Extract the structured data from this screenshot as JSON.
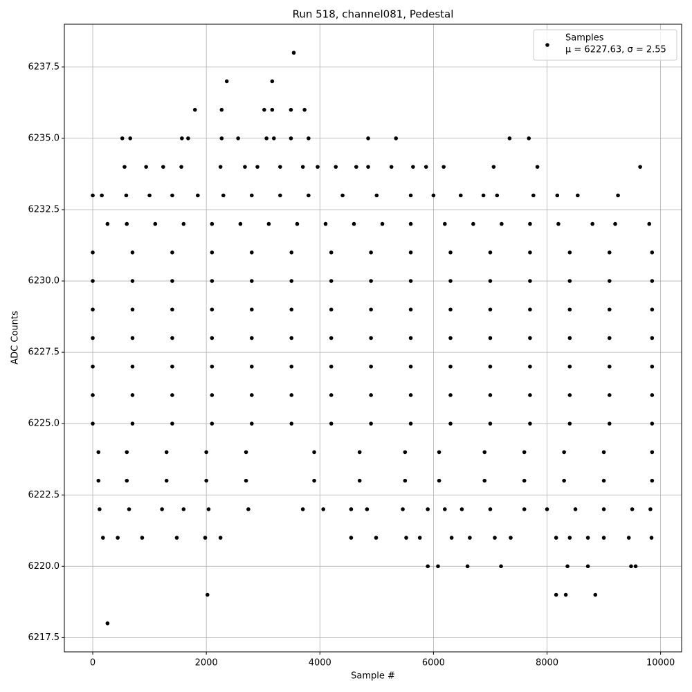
{
  "chart_data": {
    "type": "scatter",
    "title": "Run 518, channel081, Pedestal",
    "x_label": "Sample #",
    "y_label": "ADC Counts",
    "xlim": [
      -500,
      10370
    ],
    "ylim": [
      6217.0,
      6239.0
    ],
    "xticks": [
      0,
      2000,
      4000,
      6000,
      8000,
      10000
    ],
    "yticks": [
      6217.5,
      {
        "value": 6220.0,
        "label": "6220.0"
      },
      6222.5,
      {
        "value": 6225.0,
        "label": "6225.0"
      },
      6227.5,
      {
        "value": 6230.0,
        "label": "6230.0"
      },
      6232.5,
      {
        "value": 6235.0,
        "label": "6235.0"
      },
      6237.5
    ],
    "grid": true,
    "legend": "upper right",
    "legend_text": "μ = 6227.63, σ = 2.55",
    "series": [
      {
        "name": "Samples",
        "color": "#000000",
        "x": [
          3540,
          2360,
          3160,
          1800,
          2270,
          3020,
          3160,
          3490,
          3730,
          520,
          660,
          1570,
          1680,
          2270,
          2560,
          3060,
          3190,
          3490,
          3800,
          4850,
          5340,
          7340,
          7680,
          560,
          940,
          1240,
          1560,
          2250,
          2680,
          2900,
          3300,
          3700,
          3960,
          4280,
          4640,
          4850,
          5260,
          5640,
          5870,
          6180,
          7060,
          7830,
          9640,
          0,
          160,
          590,
          1000,
          1400,
          1850,
          2300,
          2800,
          3300,
          3800,
          4400,
          5000,
          5600,
          6000,
          6480,
          6880,
          7120,
          7760,
          8180,
          8540,
          9250,
          260,
          600,
          1100,
          1600,
          2100,
          2600,
          3100,
          3600,
          4100,
          4600,
          5100,
          5600,
          6200,
          6700,
          7200,
          7700,
          8200,
          8800,
          9200,
          9800,
          0,
          700,
          1400,
          2100,
          2800,
          3500,
          4200,
          4900,
          5600,
          6300,
          7000,
          7700,
          8400,
          9100,
          9850,
          0,
          700,
          1400,
          2100,
          2800,
          3500,
          4200,
          4900,
          5600,
          6300,
          7000,
          7700,
          8400,
          9100,
          9850,
          0,
          700,
          1400,
          2100,
          2800,
          3500,
          4200,
          4900,
          5600,
          6300,
          7000,
          7700,
          8400,
          9100,
          9850,
          0,
          700,
          1400,
          2100,
          2800,
          3500,
          4200,
          4900,
          5600,
          6300,
          7000,
          7700,
          8400,
          9100,
          9850,
          0,
          700,
          1400,
          2100,
          2800,
          3500,
          4200,
          4900,
          5600,
          6300,
          7000,
          7700,
          8400,
          9100,
          9850,
          0,
          700,
          1400,
          2100,
          2800,
          3500,
          4200,
          4900,
          5600,
          6300,
          7000,
          7700,
          8400,
          9100,
          9850,
          0,
          700,
          1400,
          2100,
          2800,
          3500,
          4200,
          4900,
          5600,
          6300,
          7000,
          7700,
          8400,
          9100,
          9850,
          100,
          600,
          1300,
          2000,
          2700,
          3900,
          4700,
          5500,
          6100,
          6900,
          7600,
          8300,
          9000,
          9850,
          100,
          600,
          1300,
          2000,
          2700,
          3900,
          4700,
          5500,
          6100,
          6900,
          7600,
          8300,
          9000,
          9850,
          120,
          640,
          1220,
          1600,
          2040,
          2740,
          3700,
          4060,
          4550,
          4830,
          5460,
          5900,
          6200,
          6500,
          7000,
          7600,
          8000,
          8500,
          9000,
          9500,
          9820,
          180,
          440,
          870,
          1480,
          1980,
          2250,
          4550,
          4990,
          5520,
          5760,
          6320,
          6640,
          7080,
          7360,
          8160,
          8400,
          8720,
          9000,
          9440,
          9840,
          5900,
          6080,
          6600,
          7190,
          8360,
          8720,
          9480,
          9560,
          2020,
          8160,
          8330,
          8850,
          260
        ],
        "values": [
          6238,
          6237,
          6237,
          6236,
          6236,
          6236,
          6236,
          6236,
          6236,
          6235,
          6235,
          6235,
          6235,
          6235,
          6235,
          6235,
          6235,
          6235,
          6235,
          6235,
          6235,
          6235,
          6235,
          6234,
          6234,
          6234,
          6234,
          6234,
          6234,
          6234,
          6234,
          6234,
          6234,
          6234,
          6234,
          6234,
          6234,
          6234,
          6234,
          6234,
          6234,
          6234,
          6234,
          6233,
          6233,
          6233,
          6233,
          6233,
          6233,
          6233,
          6233,
          6233,
          6233,
          6233,
          6233,
          6233,
          6233,
          6233,
          6233,
          6233,
          6233,
          6233,
          6233,
          6233,
          6232,
          6232,
          6232,
          6232,
          6232,
          6232,
          6232,
          6232,
          6232,
          6232,
          6232,
          6232,
          6232,
          6232,
          6232,
          6232,
          6232,
          6232,
          6232,
          6232,
          6231,
          6231,
          6231,
          6231,
          6231,
          6231,
          6231,
          6231,
          6231,
          6231,
          6231,
          6231,
          6231,
          6231,
          6231,
          6230,
          6230,
          6230,
          6230,
          6230,
          6230,
          6230,
          6230,
          6230,
          6230,
          6230,
          6230,
          6230,
          6230,
          6230,
          6229,
          6229,
          6229,
          6229,
          6229,
          6229,
          6229,
          6229,
          6229,
          6229,
          6229,
          6229,
          6229,
          6229,
          6229,
          6228,
          6228,
          6228,
          6228,
          6228,
          6228,
          6228,
          6228,
          6228,
          6228,
          6228,
          6228,
          6228,
          6228,
          6228,
          6227,
          6227,
          6227,
          6227,
          6227,
          6227,
          6227,
          6227,
          6227,
          6227,
          6227,
          6227,
          6227,
          6227,
          6227,
          6226,
          6226,
          6226,
          6226,
          6226,
          6226,
          6226,
          6226,
          6226,
          6226,
          6226,
          6226,
          6226,
          6226,
          6226,
          6225,
          6225,
          6225,
          6225,
          6225,
          6225,
          6225,
          6225,
          6225,
          6225,
          6225,
          6225,
          6225,
          6225,
          6225,
          6224,
          6224,
          6224,
          6224,
          6224,
          6224,
          6224,
          6224,
          6224,
          6224,
          6224,
          6224,
          6224,
          6224,
          6223,
          6223,
          6223,
          6223,
          6223,
          6223,
          6223,
          6223,
          6223,
          6223,
          6223,
          6223,
          6223,
          6223,
          6222,
          6222,
          6222,
          6222,
          6222,
          6222,
          6222,
          6222,
          6222,
          6222,
          6222,
          6222,
          6222,
          6222,
          6222,
          6222,
          6222,
          6222,
          6222,
          6222,
          6222,
          6221,
          6221,
          6221,
          6221,
          6221,
          6221,
          6221,
          6221,
          6221,
          6221,
          6221,
          6221,
          6221,
          6221,
          6221,
          6221,
          6221,
          6221,
          6221,
          6221,
          6220,
          6220,
          6220,
          6220,
          6220,
          6220,
          6220,
          6220,
          6219,
          6219,
          6219,
          6219,
          6218
        ]
      }
    ]
  }
}
